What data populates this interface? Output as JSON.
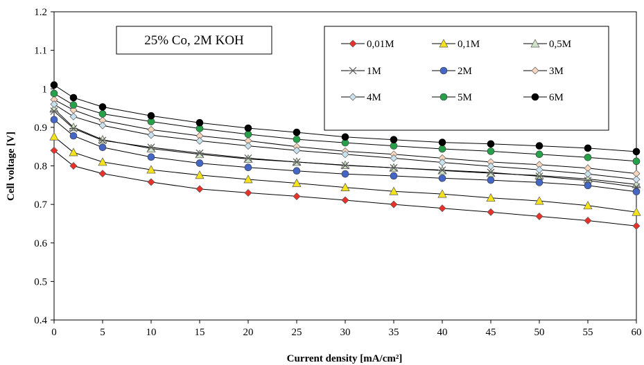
{
  "chart_data": {
    "type": "line",
    "title": "",
    "xlabel": "Current density [mA/cm²]",
    "ylabel": "Cell voltage [V]",
    "annotation": "25% Co, 2M KOH",
    "xlim": [
      0,
      60
    ],
    "ylim": [
      0.4,
      1.2
    ],
    "xticks": [
      0,
      5,
      10,
      15,
      20,
      25,
      30,
      35,
      40,
      45,
      50,
      55,
      60
    ],
    "yticks": [
      0.4,
      0.5,
      0.6,
      0.7,
      0.8,
      0.9,
      1.0,
      1.1,
      1.2
    ],
    "ytick_labels": [
      "0.4",
      "0.5",
      "0.6",
      "0.7",
      "0.8",
      "0.9",
      "1",
      "1.1",
      "1.2"
    ],
    "grid": false,
    "legend_position": "top-right",
    "x": [
      0,
      2,
      5,
      10,
      15,
      20,
      25,
      30,
      35,
      40,
      45,
      50,
      55,
      60
    ],
    "series": [
      {
        "name": "0,01M",
        "marker": "diamond",
        "color": "#e8312a",
        "values": [
          0.84,
          0.8,
          0.78,
          0.758,
          0.74,
          0.73,
          0.721,
          0.711,
          0.7,
          0.69,
          0.68,
          0.669,
          0.658,
          0.644
        ]
      },
      {
        "name": "0,1M",
        "marker": "triangle",
        "color": "#f5e21b",
        "values": [
          0.876,
          0.835,
          0.81,
          0.79,
          0.776,
          0.765,
          0.755,
          0.744,
          0.734,
          0.727,
          0.717,
          0.709,
          0.697,
          0.68
        ]
      },
      {
        "name": "0,5M",
        "marker": "triangle",
        "color": "#cfe5c6",
        "values": [
          0.948,
          0.9,
          0.868,
          0.845,
          0.83,
          0.818,
          0.81,
          0.802,
          0.795,
          0.788,
          0.781,
          0.775,
          0.766,
          0.752
        ]
      },
      {
        "name": "1M",
        "marker": "star",
        "color": "#555555",
        "values": [
          0.942,
          0.897,
          0.866,
          0.848,
          0.833,
          0.82,
          0.81,
          0.801,
          0.795,
          0.789,
          0.783,
          0.773,
          0.762,
          0.745
        ]
      },
      {
        "name": "2M",
        "marker": "circle",
        "color": "#4466c4",
        "values": [
          0.92,
          0.878,
          0.848,
          0.823,
          0.807,
          0.796,
          0.787,
          0.779,
          0.774,
          0.768,
          0.763,
          0.757,
          0.749,
          0.733
        ]
      },
      {
        "name": "3M",
        "marker": "diamond",
        "color": "#f8d6bd",
        "values": [
          0.972,
          0.945,
          0.918,
          0.894,
          0.878,
          0.865,
          0.85,
          0.838,
          0.83,
          0.82,
          0.81,
          0.803,
          0.794,
          0.78
        ]
      },
      {
        "name": "4M",
        "marker": "diamond",
        "color": "#c8e2ef",
        "values": [
          0.96,
          0.928,
          0.905,
          0.88,
          0.865,
          0.852,
          0.84,
          0.83,
          0.82,
          0.809,
          0.799,
          0.79,
          0.779,
          0.765
        ]
      },
      {
        "name": "5M",
        "marker": "circle",
        "color": "#27a04a",
        "values": [
          0.988,
          0.958,
          0.935,
          0.915,
          0.897,
          0.882,
          0.869,
          0.86,
          0.852,
          0.844,
          0.838,
          0.83,
          0.822,
          0.812
        ]
      },
      {
        "name": "6M",
        "marker": "circle",
        "color": "#000000",
        "values": [
          1.01,
          0.977,
          0.953,
          0.93,
          0.912,
          0.898,
          0.887,
          0.875,
          0.868,
          0.861,
          0.857,
          0.852,
          0.846,
          0.837
        ]
      }
    ]
  }
}
